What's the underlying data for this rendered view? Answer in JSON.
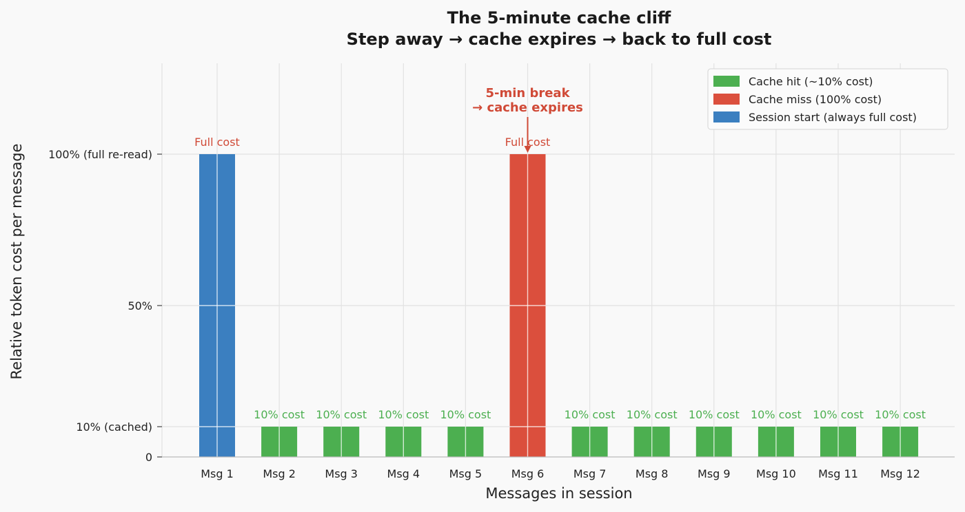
{
  "chart_data": {
    "type": "bar",
    "title": "The 5-minute cache cliff",
    "subtitle": "Step away → cache expires → back to full cost",
    "xlabel": "Messages in session",
    "ylabel": "Relative token cost per message",
    "ylim": [
      0,
      1.3
    ],
    "grid": true,
    "yticks": [
      {
        "value": 0,
        "label": "0"
      },
      {
        "value": 0.1,
        "label": "10% (cached)"
      },
      {
        "value": 0.5,
        "label": "50%"
      },
      {
        "value": 1.0,
        "label": "100% (full re-read)"
      }
    ],
    "categories": [
      "Msg 1",
      "Msg 2",
      "Msg 3",
      "Msg 4",
      "Msg 5",
      "Msg 6",
      "Msg 7",
      "Msg 8",
      "Msg 9",
      "Msg 10",
      "Msg 11",
      "Msg 12"
    ],
    "values": [
      1.0,
      0.1,
      0.1,
      0.1,
      0.1,
      1.0,
      0.1,
      0.1,
      0.1,
      0.1,
      0.1,
      0.1
    ],
    "bar_types": [
      "start",
      "hit",
      "hit",
      "hit",
      "hit",
      "miss",
      "hit",
      "hit",
      "hit",
      "hit",
      "hit",
      "hit"
    ],
    "bar_labels": [
      "Full cost",
      "10% cost",
      "10% cost",
      "10% cost",
      "10% cost",
      "Full cost",
      "10% cost",
      "10% cost",
      "10% cost",
      "10% cost",
      "10% cost",
      "10% cost"
    ],
    "legend": {
      "placement": "top-right",
      "entries": [
        {
          "key": "hit",
          "label": "Cache hit (~10% cost)"
        },
        {
          "key": "miss",
          "label": "Cache miss (100% cost)"
        },
        {
          "key": "start",
          "label": "Session start (always full cost)"
        }
      ]
    },
    "annotation": {
      "lines": [
        "5-min break",
        "→ cache expires"
      ],
      "target_index": 5,
      "target_value": 1.0
    },
    "colors": {
      "hit": "#4caf50",
      "miss": "#db4f3d",
      "start": "#3b7fc0",
      "annotation": "#d04a37",
      "grid": "#e2e2e2",
      "axis": "#bbbbbb"
    }
  }
}
